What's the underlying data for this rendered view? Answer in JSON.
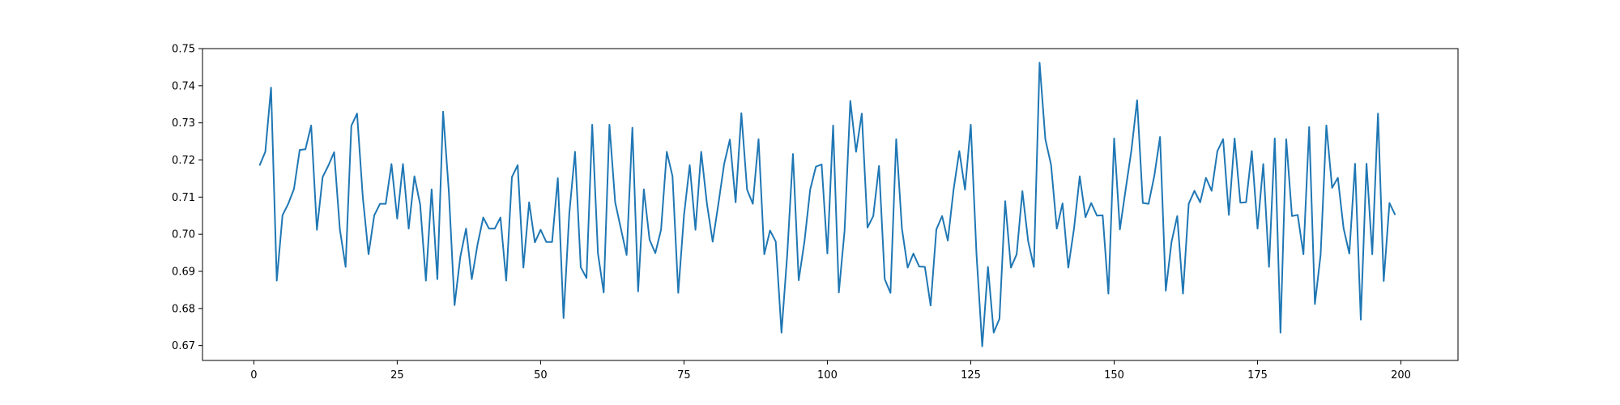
{
  "chart_data": {
    "type": "line",
    "title": "",
    "xlabel": "",
    "ylabel": "",
    "xlim": [
      -8.95,
      209.95
    ],
    "ylim": [
      0.666,
      0.75
    ],
    "grid": false,
    "line_color": "#1f77b4",
    "x_ticks": [
      0,
      25,
      50,
      75,
      100,
      125,
      150,
      175,
      200
    ],
    "y_ticks": [
      0.67,
      0.68,
      0.69,
      0.7,
      0.71,
      0.72,
      0.73,
      0.74,
      0.75
    ],
    "x_tick_labels": [
      "0",
      "25",
      "50",
      "75",
      "100",
      "125",
      "150",
      "175",
      "200"
    ],
    "y_tick_labels": [
      "0.67",
      "0.68",
      "0.69",
      "0.70",
      "0.71",
      "0.72",
      "0.73",
      "0.74",
      "0.75"
    ],
    "series": [
      {
        "x_start": 1,
        "x_step": 1,
        "values": [
          0.7185,
          0.7222,
          0.7395,
          0.6875,
          0.7051,
          0.7082,
          0.7122,
          0.7227,
          0.7229,
          0.7293,
          0.7012,
          0.7154,
          0.7185,
          0.7221,
          0.7013,
          0.6912,
          0.7292,
          0.7325,
          0.71,
          0.6946,
          0.7051,
          0.7082,
          0.7082,
          0.7189,
          0.7042,
          0.7189,
          0.7015,
          0.7156,
          0.708,
          0.6875,
          0.7121,
          0.6879,
          0.733,
          0.7115,
          0.6809,
          0.6939,
          0.7015,
          0.6879,
          0.6972,
          0.7045,
          0.7015,
          0.7015,
          0.7045,
          0.6875,
          0.7154,
          0.7186,
          0.691,
          0.7086,
          0.6978,
          0.7012,
          0.6979,
          0.6979,
          0.7151,
          0.6774,
          0.7055,
          0.7222,
          0.6911,
          0.6882,
          0.7295,
          0.6948,
          0.6843,
          0.7295,
          0.7086,
          0.7015,
          0.6944,
          0.7287,
          0.6846,
          0.7121,
          0.6985,
          0.6949,
          0.7012,
          0.7222,
          0.7156,
          0.6842,
          0.7051,
          0.7186,
          0.7012,
          0.7222,
          0.7082,
          0.698,
          0.7082,
          0.7189,
          0.7255,
          0.7086,
          0.7326,
          0.712,
          0.7082,
          0.7256,
          0.6946,
          0.701,
          0.698,
          0.6735,
          0.6945,
          0.7216,
          0.6876,
          0.698,
          0.712,
          0.7182,
          0.7188,
          0.6948,
          0.7293,
          0.6843,
          0.701,
          0.7359,
          0.7222,
          0.7325,
          0.7018,
          0.7049,
          0.7184,
          0.6879,
          0.6842,
          0.7256,
          0.7015,
          0.691,
          0.6948,
          0.6913,
          0.6912,
          0.6808,
          0.7013,
          0.7049,
          0.6983,
          0.712,
          0.7224,
          0.712,
          0.7295,
          0.6946,
          0.6698,
          0.6912,
          0.6735,
          0.6772,
          0.7089,
          0.691,
          0.6946,
          0.7116,
          0.6982,
          0.6912,
          0.7462,
          0.7256,
          0.7187,
          0.7015,
          0.7083,
          0.691,
          0.7015,
          0.7156,
          0.7046,
          0.7084,
          0.705,
          0.7051,
          0.684,
          0.7258,
          0.7013,
          0.712,
          0.7225,
          0.7361,
          0.7084,
          0.7082,
          0.7157,
          0.7262,
          0.6848,
          0.6979,
          0.7049,
          0.684,
          0.7082,
          0.7117,
          0.7086,
          0.7152,
          0.7117,
          0.7224,
          0.7256,
          0.7052,
          0.7258,
          0.7085,
          0.7086,
          0.7224,
          0.7015,
          0.7189,
          0.6912,
          0.7258,
          0.6735,
          0.7256,
          0.7049,
          0.7052,
          0.6946,
          0.7289,
          0.6812,
          0.6945,
          0.7293,
          0.7125,
          0.7152,
          0.7016,
          0.6948,
          0.719,
          0.677,
          0.719,
          0.6946,
          0.7325,
          0.6874,
          0.7084,
          0.7052
        ]
      }
    ]
  }
}
